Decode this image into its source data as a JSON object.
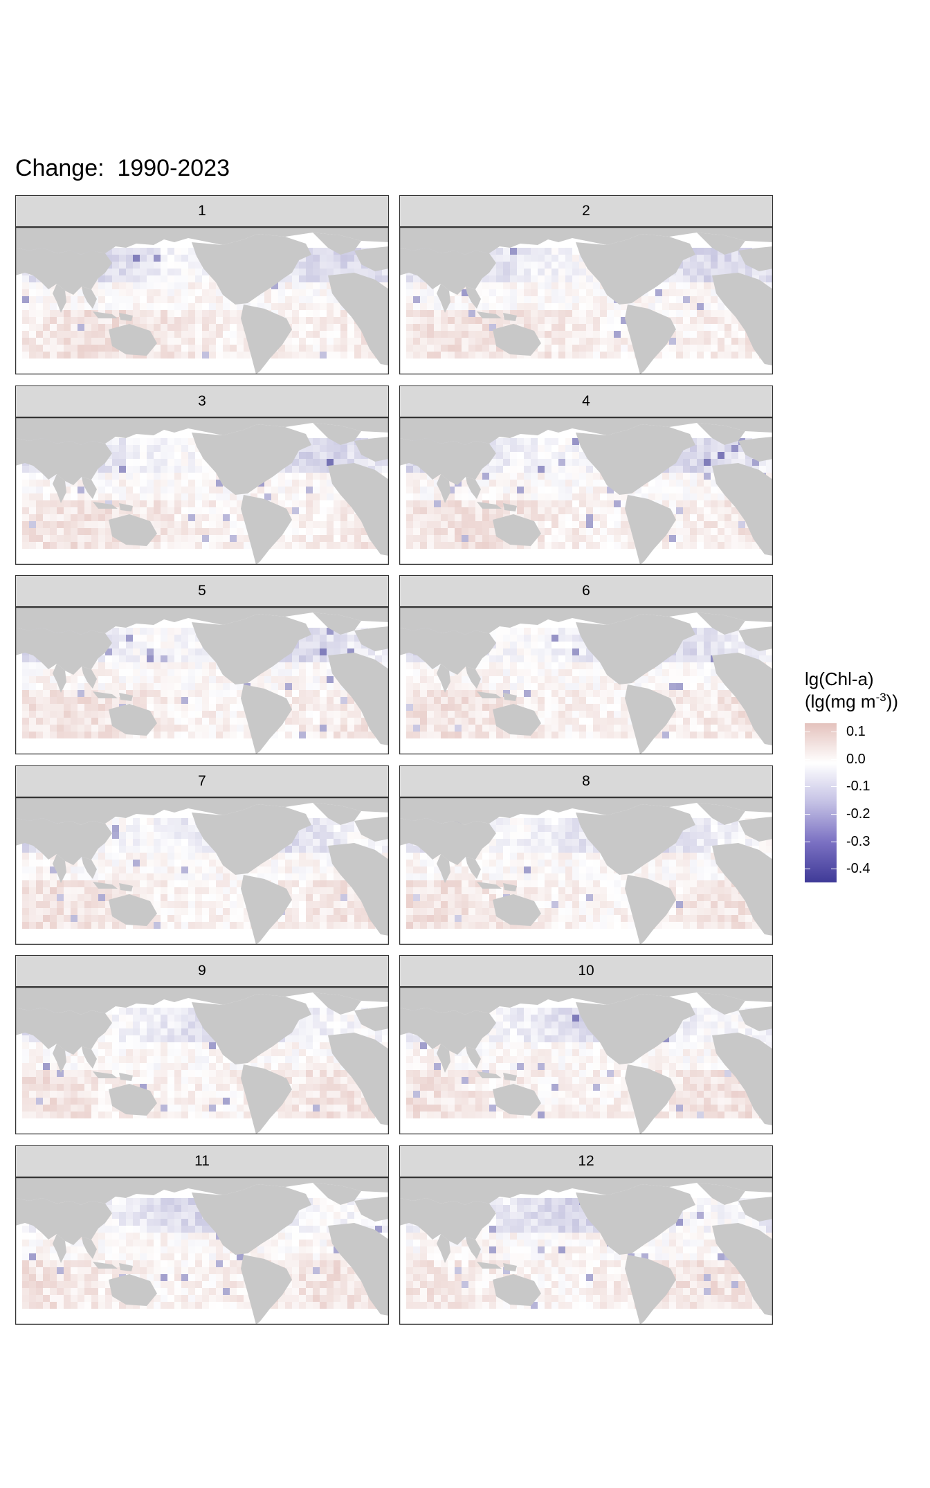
{
  "chart_data": {
    "type": "heatmap",
    "title": "Change:  1990-2023",
    "facets": [
      "1",
      "2",
      "3",
      "4",
      "5",
      "6",
      "7",
      "8",
      "9",
      "10",
      "11",
      "12"
    ],
    "colorbar": {
      "title_line1": "lg(Chl-a)",
      "title_line2_prefix": "(lg(mg m",
      "title_line2_sup": "-3",
      "title_line2_suffix": "))",
      "ticks": [
        "0.1",
        "0.0",
        "-0.1",
        "-0.2",
        "-0.3",
        "-0.4"
      ],
      "range": [
        -0.45,
        0.13
      ],
      "colors": {
        "high": "#e4c2bd",
        "mid": "#ffffff",
        "low": "#3f3a97"
      }
    },
    "map_colors": {
      "land": "#c8c8c8",
      "ocean": "#ffffff",
      "frame": "#333333"
    }
  }
}
